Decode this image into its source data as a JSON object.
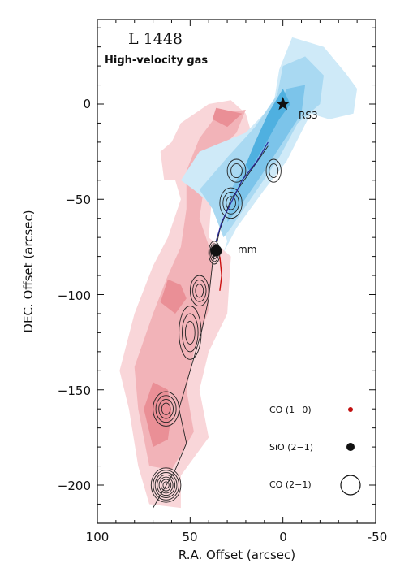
{
  "chart_data": {
    "type": "contour_map",
    "title": "L 1448",
    "subtitle": "High-velocity gas",
    "xlabel": "R.A. Offset (arcsec)",
    "ylabel": "DEC. Offset (arcsec)",
    "xlim": [
      100,
      -50
    ],
    "ylim": [
      -220,
      42
    ],
    "xticks": [
      100,
      50,
      0,
      -50
    ],
    "yticks": [
      0,
      -50,
      -100,
      -150,
      -200
    ],
    "tick_labels_x": [
      "100",
      "50",
      "0",
      "-50"
    ],
    "tick_labels_y": [
      "0",
      "−50",
      "−100",
      "−150",
      "−200"
    ],
    "colors": {
      "blue_lobe": [
        "#cfeaf8",
        "#a9d9f2",
        "#7cc4ea",
        "#4fb0e0"
      ],
      "red_lobe": [
        "#f9d6d9",
        "#f2b3b8",
        "#ea8f96"
      ],
      "sio_contour": "#222222",
      "blue_contour": "#2a2a9a",
      "red_contour": "#cc1111"
    },
    "markers": [
      {
        "label": "RS3",
        "x": 0,
        "y": 0,
        "symbol": "star"
      },
      {
        "label": "mm",
        "x": 36,
        "y": -77,
        "symbol": "dot"
      }
    ],
    "legend": [
      {
        "label": "CO (1−0)",
        "symbol": "small red dot"
      },
      {
        "label": "SiO (2−1)",
        "symbol": "black dot"
      },
      {
        "label": "CO (2−1)",
        "symbol": "open circle"
      }
    ]
  }
}
